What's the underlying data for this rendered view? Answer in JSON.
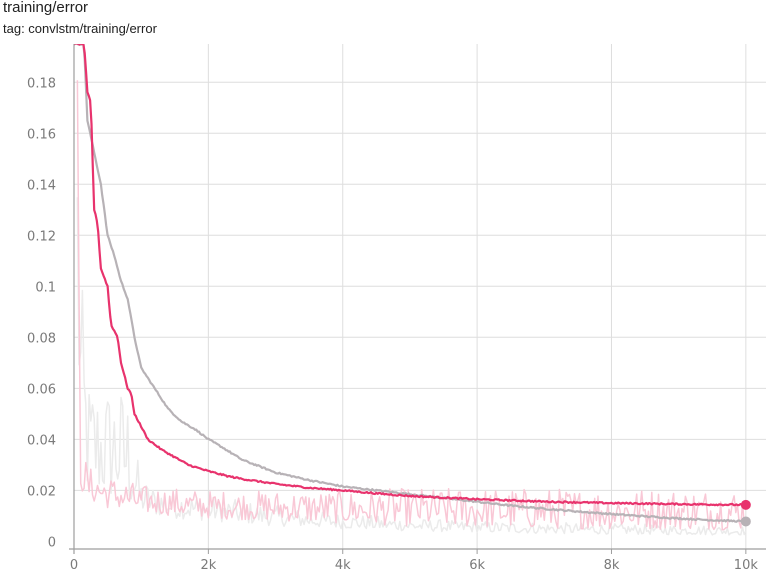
{
  "header": {
    "title": "training/error",
    "subtitle": "tag: convlstm/training/error"
  },
  "colors": {
    "pink_series": "#e8336d",
    "gray_series": "#b7b2b6",
    "pink_raw": "#f9c8d6",
    "gray_raw": "#ebebeb",
    "grid": "#dedede",
    "axis": "#9e9e9e"
  },
  "chart_data": {
    "type": "line",
    "title": "training/error",
    "subtitle": "tag: convlstm/training/error",
    "xlim": [
      0,
      10300
    ],
    "ylim": [
      -0.003,
      0.195
    ],
    "grid": true,
    "x_ticks": [
      0,
      2000,
      4000,
      6000,
      8000,
      10000
    ],
    "x_tick_labels": [
      "0",
      "2k",
      "4k",
      "6k",
      "8k",
      "10k"
    ],
    "y_ticks": [
      0,
      0.02,
      0.04,
      0.06,
      0.08,
      0.1,
      0.12,
      0.14,
      0.16,
      0.18
    ],
    "y_tick_labels": [
      "0",
      "0.02",
      "0.04",
      "0.06",
      "0.08",
      "0.1",
      "0.12",
      "0.14",
      "0.16",
      "0.18"
    ],
    "series": [
      {
        "color": "#b7b2b6",
        "raw_color": "#ebebeb",
        "smoothed": {
          "x": [
            0,
            80,
            150,
            200,
            280,
            400,
            500,
            600,
            700,
            800,
            900,
            1000,
            1200,
            1400,
            1600,
            1800,
            2000,
            2200,
            2500,
            3000,
            3500,
            4000,
            4500,
            5000,
            5500,
            6000,
            6500,
            7000,
            7500,
            8000,
            8500,
            9000,
            9500,
            10000
          ],
          "y": [
            0.195,
            0.195,
            0.195,
            0.165,
            0.155,
            0.14,
            0.12,
            0.112,
            0.102,
            0.095,
            0.08,
            0.068,
            0.06,
            0.052,
            0.047,
            0.044,
            0.04,
            0.037,
            0.032,
            0.027,
            0.024,
            0.0215,
            0.02,
            0.0185,
            0.017,
            0.0155,
            0.014,
            0.0128,
            0.0117,
            0.0107,
            0.0098,
            0.009,
            0.0083,
            0.0078
          ]
        },
        "raw_band": {
          "x": [
            50,
            100,
            200,
            400,
            600,
            800,
            900,
            1000,
            1200,
            1500,
            2000,
            2500,
            3000,
            3500,
            4000,
            4500,
            5000,
            6000,
            7000,
            8000,
            9000,
            10000
          ],
          "y_low": [
            0.06,
            0.03,
            0.018,
            0.016,
            0.015,
            0.013,
            0.012,
            0.011,
            0.01,
            0.009,
            0.008,
            0.007,
            0.006,
            0.0055,
            0.005,
            0.0045,
            0.004,
            0.0035,
            0.003,
            0.0028,
            0.0026,
            0.0025
          ],
          "y_high": [
            0.19,
            0.11,
            0.065,
            0.062,
            0.063,
            0.06,
            0.04,
            0.025,
            0.022,
            0.02,
            0.018,
            0.016,
            0.014,
            0.012,
            0.011,
            0.01,
            0.009,
            0.008,
            0.0075,
            0.007,
            0.0065,
            0.006
          ]
        },
        "last": {
          "x": 10000,
          "y": 0.0078
        }
      },
      {
        "color": "#e8336d",
        "raw_color": "#f9c8d6",
        "smoothed": {
          "x": [
            0,
            150,
            200,
            250,
            300,
            350,
            400,
            500,
            550,
            650,
            700,
            800,
            850,
            900,
            1000,
            1100,
            1200,
            1300,
            1500,
            1700,
            2000,
            2300,
            2500,
            3000,
            3500,
            4000,
            4500,
            5000,
            6000,
            7000,
            8000,
            9000,
            10000
          ],
          "y": [
            0.195,
            0.195,
            0.176,
            0.172,
            0.13,
            0.125,
            0.107,
            0.1,
            0.085,
            0.08,
            0.07,
            0.06,
            0.058,
            0.05,
            0.045,
            0.04,
            0.038,
            0.036,
            0.033,
            0.03,
            0.0275,
            0.0255,
            0.0245,
            0.0225,
            0.021,
            0.02,
            0.0188,
            0.0178,
            0.0165,
            0.0156,
            0.015,
            0.0146,
            0.0143
          ]
        },
        "raw_band": {
          "x": [
            50,
            100,
            150,
            200,
            300,
            500,
            800,
            1000,
            1500,
            2000,
            3000,
            4000,
            5000,
            6000,
            7000,
            8000,
            9000,
            10000
          ],
          "y_low": [
            0.08,
            0.02,
            0.018,
            0.016,
            0.015,
            0.013,
            0.012,
            0.011,
            0.01,
            0.009,
            0.008,
            0.007,
            0.006,
            0.0055,
            0.005,
            0.0048,
            0.0046,
            0.0045
          ],
          "y_high": [
            0.19,
            0.04,
            0.035,
            0.03,
            0.028,
            0.026,
            0.024,
            0.022,
            0.021,
            0.02,
            0.02,
            0.02,
            0.021,
            0.021,
            0.021,
            0.021,
            0.021,
            0.021
          ]
        },
        "last": {
          "x": 10000,
          "y": 0.0143
        }
      }
    ]
  }
}
